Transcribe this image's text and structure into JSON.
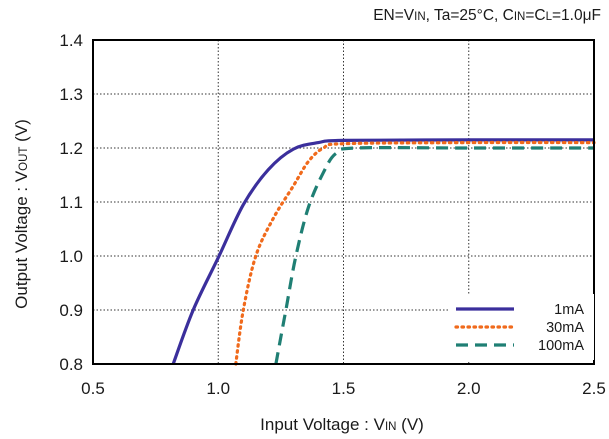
{
  "chart_data": {
    "type": "line",
    "conditions": {
      "p1": "EN=V",
      "s1": "IN",
      "p2": ", Ta=25°C, C",
      "s2": "IN",
      "p3": "=C",
      "s3": "L",
      "p4": "=1.0μF"
    },
    "xlabel": {
      "main": "Input Voltage : V",
      "sub": "IN",
      "unit": " (V)"
    },
    "ylabel": {
      "main": "Output Voltage : V",
      "sub": "OUT",
      "unit": " (V)"
    },
    "xlim": [
      0.5,
      2.5
    ],
    "ylim": [
      0.8,
      1.4
    ],
    "xticks": [
      "0.5",
      "1.0",
      "1.5",
      "2.0",
      "2.5"
    ],
    "yticks": [
      "0.8",
      "0.9",
      "1.0",
      "1.1",
      "1.2",
      "1.3",
      "1.4"
    ],
    "grid": true,
    "legend_position": "bottom-right",
    "series": [
      {
        "name": "1mA",
        "color": "#3b2f9c",
        "style": "solid",
        "points": [
          [
            0.82,
            0.8
          ],
          [
            0.9,
            0.9
          ],
          [
            1.0,
            0.997
          ],
          [
            1.1,
            1.095
          ],
          [
            1.2,
            1.16
          ],
          [
            1.3,
            1.198
          ],
          [
            1.4,
            1.21
          ],
          [
            1.5,
            1.214
          ],
          [
            2.0,
            1.215
          ],
          [
            2.5,
            1.215
          ]
        ]
      },
      {
        "name": "30mA",
        "color": "#f06a1c",
        "style": "dotted",
        "points": [
          [
            1.07,
            0.8
          ],
          [
            1.1,
            0.9
          ],
          [
            1.15,
            1.0
          ],
          [
            1.22,
            1.07
          ],
          [
            1.3,
            1.13
          ],
          [
            1.36,
            1.175
          ],
          [
            1.42,
            1.2
          ],
          [
            1.5,
            1.208
          ],
          [
            2.0,
            1.21
          ],
          [
            2.5,
            1.21
          ]
        ]
      },
      {
        "name": "100mA",
        "color": "#1f7f74",
        "style": "dashed",
        "points": [
          [
            1.23,
            0.8
          ],
          [
            1.27,
            0.9
          ],
          [
            1.31,
            1.0
          ],
          [
            1.36,
            1.09
          ],
          [
            1.42,
            1.155
          ],
          [
            1.47,
            1.19
          ],
          [
            1.55,
            1.2
          ],
          [
            2.0,
            1.2
          ],
          [
            2.5,
            1.2
          ]
        ]
      }
    ]
  }
}
